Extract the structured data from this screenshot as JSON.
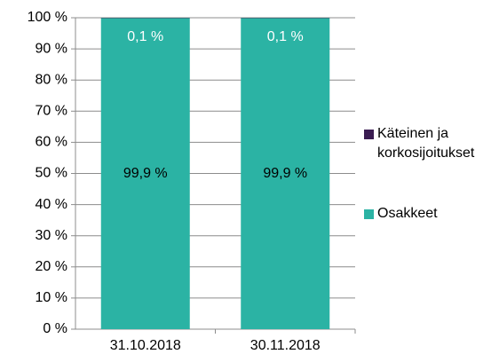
{
  "chart_data": {
    "type": "stacked_bar",
    "categories": [
      "31.10.2018",
      "30.11.2018"
    ],
    "series": [
      {
        "name": "Käteinen ja korkosijoitukset",
        "color": "#3b1d52",
        "values": [
          0.1,
          0.1
        ],
        "value_labels": [
          "0,1 %",
          "0,1 %"
        ]
      },
      {
        "name": "Osakkeet",
        "color": "#2bb3a4",
        "values": [
          99.9,
          99.9
        ],
        "value_labels": [
          "99,9 %",
          "99,9 %"
        ]
      }
    ],
    "ylim": [
      0,
      100
    ],
    "yticks": [
      {
        "value": 0,
        "label": "0 %"
      },
      {
        "value": 10,
        "label": "10 %"
      },
      {
        "value": 20,
        "label": "20 %"
      },
      {
        "value": 30,
        "label": "30 %"
      },
      {
        "value": 40,
        "label": "40 %"
      },
      {
        "value": 50,
        "label": "50 %"
      },
      {
        "value": 60,
        "label": "60 %"
      },
      {
        "value": 70,
        "label": "70 %"
      },
      {
        "value": 80,
        "label": "80 %"
      },
      {
        "value": 90,
        "label": "90 %"
      },
      {
        "value": 100,
        "label": "100 %"
      }
    ],
    "grid": true,
    "legend": "right"
  }
}
